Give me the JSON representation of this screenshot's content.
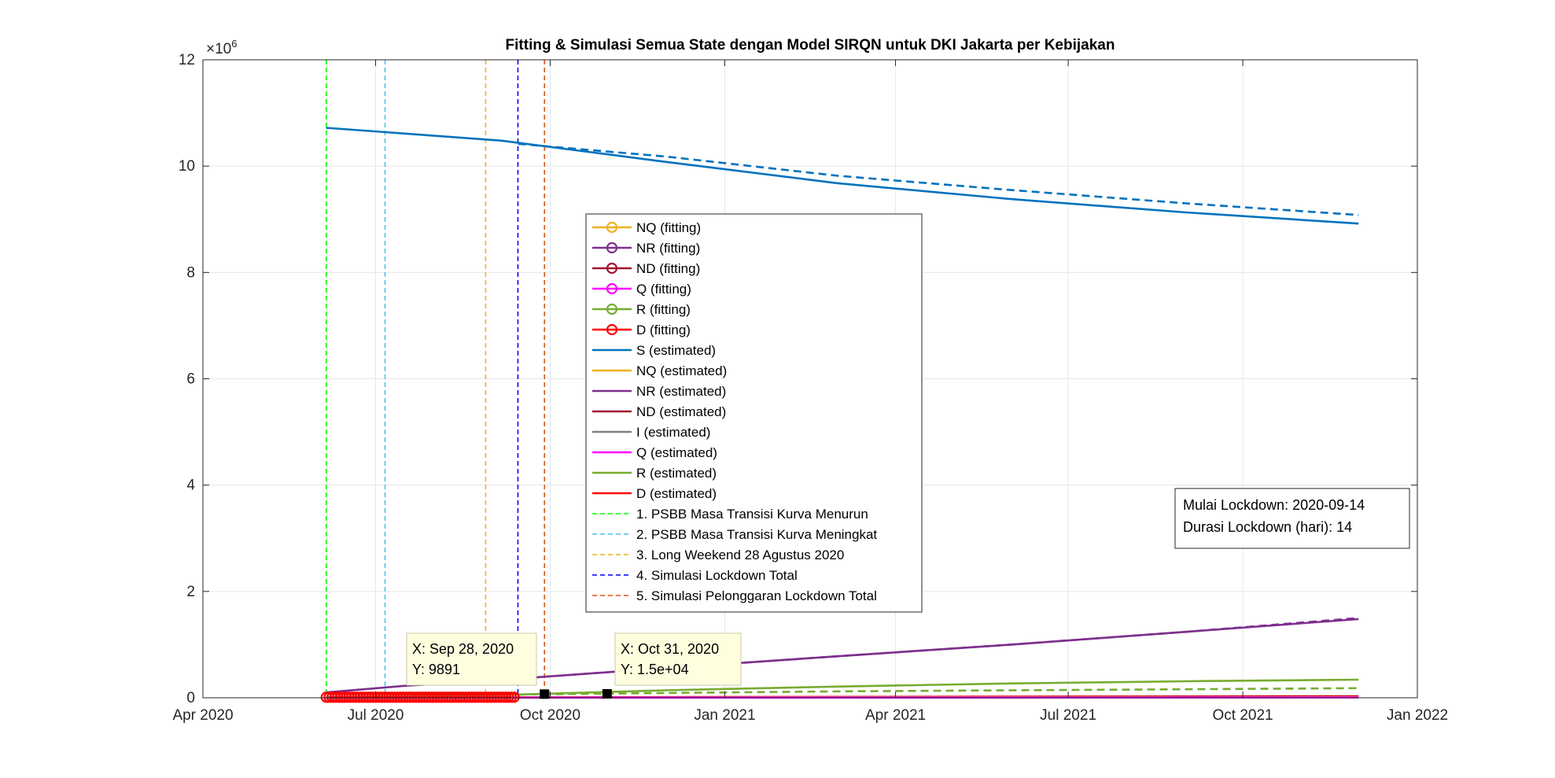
{
  "chart_data": {
    "type": "line",
    "title": "Fitting & Simulasi Semua State dengan Model SIRQN untuk DKI Jakarta per Kebijakan",
    "xlabel": "",
    "ylabel": "",
    "y_exponent_label": "×10",
    "y_exponent_power": "6",
    "x_range": [
      "2020-04-01",
      "2022-01-01"
    ],
    "ylim": [
      0,
      12
    ],
    "grid": true,
    "x_ticks": [
      {
        "date": "2020-04-01",
        "label": "Apr 2020"
      },
      {
        "date": "2020-07-01",
        "label": "Jul 2020"
      },
      {
        "date": "2020-10-01",
        "label": "Oct 2020"
      },
      {
        "date": "2021-01-01",
        "label": "Jan 2021"
      },
      {
        "date": "2021-04-01",
        "label": "Apr 2021"
      },
      {
        "date": "2021-07-01",
        "label": "Jul 2021"
      },
      {
        "date": "2021-10-01",
        "label": "Oct 2021"
      },
      {
        "date": "2022-01-01",
        "label": "Jan 2022"
      }
    ],
    "y_ticks": [
      {
        "value": 0,
        "label": "0"
      },
      {
        "value": 2,
        "label": "2"
      },
      {
        "value": 4,
        "label": "4"
      },
      {
        "value": 6,
        "label": "6"
      },
      {
        "value": 8,
        "label": "8"
      },
      {
        "value": 10,
        "label": "10"
      },
      {
        "value": 12,
        "label": "12"
      }
    ],
    "series": [
      {
        "name": "S (estimated)",
        "color": "#0072BD",
        "dash": false,
        "points": [
          [
            "2020-06-05",
            10.72
          ],
          [
            "2020-09-05",
            10.48
          ],
          [
            "2020-12-01",
            10.08
          ],
          [
            "2021-03-01",
            9.68
          ],
          [
            "2021-06-01",
            9.38
          ],
          [
            "2021-09-01",
            9.13
          ],
          [
            "2021-12-01",
            8.92
          ]
        ]
      },
      {
        "name": "",
        "color": "#0072BD",
        "dash": true,
        "points": [
          [
            "2020-09-14",
            10.42
          ],
          [
            "2020-12-01",
            10.18
          ],
          [
            "2021-03-01",
            9.82
          ],
          [
            "2021-06-01",
            9.55
          ],
          [
            "2021-09-01",
            9.3
          ],
          [
            "2021-12-01",
            9.08
          ]
        ]
      },
      {
        "name": "NR (estimated)",
        "color": "#7E2F8E",
        "dash": false,
        "points": [
          [
            "2020-06-05",
            0.1
          ],
          [
            "2020-07-15",
            0.22
          ],
          [
            "2020-09-14",
            0.36
          ],
          [
            "2020-12-01",
            0.56
          ],
          [
            "2021-03-01",
            0.78
          ],
          [
            "2021-06-01",
            1.0
          ],
          [
            "2021-09-01",
            1.24
          ],
          [
            "2021-12-01",
            1.48
          ]
        ]
      },
      {
        "name": "",
        "color": "#7E2F8E",
        "dash": true,
        "points": [
          [
            "2020-09-14",
            0.36
          ],
          [
            "2020-12-01",
            0.56
          ],
          [
            "2021-03-01",
            0.78
          ],
          [
            "2021-06-01",
            1.0
          ],
          [
            "2021-09-01",
            1.24
          ],
          [
            "2021-12-01",
            1.5
          ]
        ]
      },
      {
        "name": "R (estimated)",
        "color": "#77AC30",
        "dash": false,
        "points": [
          [
            "2020-06-05",
            0.01
          ],
          [
            "2020-09-14",
            0.06
          ],
          [
            "2020-12-01",
            0.14
          ],
          [
            "2021-03-01",
            0.21
          ],
          [
            "2021-06-01",
            0.27
          ],
          [
            "2021-09-01",
            0.31
          ],
          [
            "2021-12-01",
            0.34
          ]
        ]
      },
      {
        "name": "",
        "color": "#77AC30",
        "dash": true,
        "points": [
          [
            "2020-09-14",
            0.06
          ],
          [
            "2020-12-01",
            0.09
          ],
          [
            "2021-03-01",
            0.12
          ],
          [
            "2021-06-01",
            0.14
          ],
          [
            "2021-09-01",
            0.16
          ],
          [
            "2021-12-01",
            0.18
          ]
        ]
      },
      {
        "name": "D (estimated)",
        "color": "#FF0000",
        "dash": false,
        "points": [
          [
            "2020-06-05",
            0.005
          ],
          [
            "2021-12-01",
            0.03
          ]
        ]
      },
      {
        "name": "ND (estimated)",
        "color": "#A2142F",
        "dash": false,
        "points": [
          [
            "2020-06-05",
            0.002
          ],
          [
            "2021-12-01",
            0.02
          ]
        ]
      },
      {
        "name": "NQ (estimated)",
        "color": "#EDB120",
        "dash": false,
        "points": [
          [
            "2020-06-05",
            0.003
          ],
          [
            "2021-12-01",
            0.01
          ]
        ]
      },
      {
        "name": "I (estimated)",
        "color": "#808080",
        "dash": false,
        "points": [
          [
            "2020-06-05",
            0.004
          ],
          [
            "2021-12-01",
            0.005
          ]
        ]
      },
      {
        "name": "Q (estimated)",
        "color": "#FF00FF",
        "dash": false,
        "points": [
          [
            "2020-06-05",
            0.002
          ],
          [
            "2021-12-01",
            0.004
          ]
        ]
      }
    ],
    "fitting_markers": {
      "color": "#FF0000",
      "start": "2020-06-05",
      "end": "2020-09-12",
      "value": 0.01
    },
    "vertical_lines": [
      {
        "date": "2020-06-05",
        "color": "#00FF00"
      },
      {
        "date": "2020-07-06",
        "color": "#4DBEEE"
      },
      {
        "date": "2020-08-28",
        "color": "#EDB120"
      },
      {
        "date": "2020-09-14",
        "color": "#0000FF"
      },
      {
        "date": "2020-09-28",
        "color": "#D95319"
      }
    ],
    "legend": {
      "placement": "center",
      "entries": [
        {
          "label": "NQ (fitting)",
          "color": "#EDB120",
          "style": "line-marker"
        },
        {
          "label": "NR (fitting)",
          "color": "#7E2F8E",
          "style": "line-marker"
        },
        {
          "label": "ND (fitting)",
          "color": "#A2142F",
          "style": "line-marker"
        },
        {
          "label": "Q (fitting)",
          "color": "#FF00FF",
          "style": "line-marker"
        },
        {
          "label": "R (fitting)",
          "color": "#77AC30",
          "style": "line-marker"
        },
        {
          "label": "D (fitting)",
          "color": "#FF0000",
          "style": "line-marker"
        },
        {
          "label": "S (estimated)",
          "color": "#0072BD",
          "style": "line"
        },
        {
          "label": "NQ (estimated)",
          "color": "#EDB120",
          "style": "line"
        },
        {
          "label": "NR (estimated)",
          "color": "#7E2F8E",
          "style": "line"
        },
        {
          "label": "ND (estimated)",
          "color": "#A2142F",
          "style": "line"
        },
        {
          "label": "I (estimated)",
          "color": "#808080",
          "style": "line"
        },
        {
          "label": "Q (estimated)",
          "color": "#FF00FF",
          "style": "line"
        },
        {
          "label": "R (estimated)",
          "color": "#77AC30",
          "style": "line"
        },
        {
          "label": "D (estimated)",
          "color": "#FF0000",
          "style": "line"
        },
        {
          "label": "1. PSBB Masa Transisi Kurva Menurun",
          "color": "#00FF00",
          "style": "dashed"
        },
        {
          "label": "2. PSBB Masa Transisi Kurva Meningkat",
          "color": "#4DBEEE",
          "style": "dashed"
        },
        {
          "label": "3. Long Weekend 28 Agustus 2020",
          "color": "#EDB120",
          "style": "dashed"
        },
        {
          "label": "4. Simulasi Lockdown Total",
          "color": "#0000FF",
          "style": "dashed"
        },
        {
          "label": "5. Simulasi Pelonggaran Lockdown Total",
          "color": "#D95319",
          "style": "dashed"
        }
      ]
    },
    "annotation": {
      "lines": [
        "Mulai Lockdown: 2020-09-14",
        "Durasi Lockdown (hari): 14"
      ]
    },
    "datatips": [
      {
        "date": "2020-09-28",
        "value": 0.009891,
        "x_text": "X: Sep 28, 2020",
        "y_text": "Y: 9891"
      },
      {
        "date": "2020-10-31",
        "value": 0.015,
        "x_text": "X: Oct 31, 2020",
        "y_text": "Y: 1.5e+04"
      }
    ]
  }
}
